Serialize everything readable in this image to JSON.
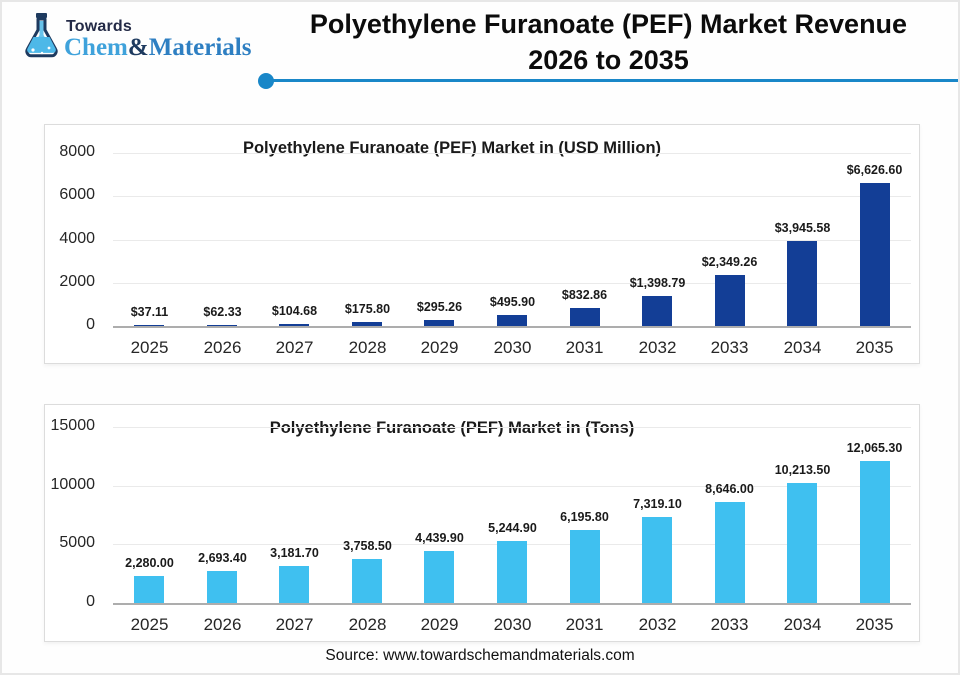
{
  "header": {
    "logo": {
      "top_text": "Towards",
      "brand_chem": "Chem",
      "brand_amp": "&",
      "brand_materials": "Materials"
    },
    "title_line1": "Polyethylene Furanoate (PEF) Market Revenue",
    "title_line2": "2026 to 2035"
  },
  "colors": {
    "accent_divider": "#1987c8",
    "dark_bar": "#133e96",
    "light_bar": "#3fc0f0",
    "gridline": "#eaeaea",
    "axis": "#adadad"
  },
  "chart_data": [
    {
      "type": "bar",
      "title": "Polyethylene Furanoate (PEF) Market in (USD Million)",
      "xlabel": "",
      "ylabel": "",
      "categories": [
        "2025",
        "2026",
        "2027",
        "2028",
        "2029",
        "2030",
        "2031",
        "2032",
        "2033",
        "2034",
        "2035"
      ],
      "values": [
        37.11,
        62.33,
        104.68,
        175.8,
        295.26,
        495.9,
        832.86,
        1398.79,
        2349.26,
        3945.58,
        6626.6
      ],
      "labels": [
        "$37.11",
        "$62.33",
        "$104.68",
        "$175.80",
        "$295.26",
        "$495.90",
        "$832.86",
        "$1,398.79",
        "$2,349.26",
        "$3,945.58",
        "$6,626.60"
      ],
      "yticks": [
        0,
        2000,
        4000,
        6000,
        8000
      ],
      "ylim": [
        0,
        8000
      ],
      "bar_color": "#133e96",
      "grid": true,
      "legend": false
    },
    {
      "type": "bar",
      "title": "Polyethylene Furanoate (PEF) Market in (Tons)",
      "xlabel": "",
      "ylabel": "",
      "categories": [
        "2025",
        "2026",
        "2027",
        "2028",
        "2029",
        "2030",
        "2031",
        "2032",
        "2033",
        "2034",
        "2035"
      ],
      "values": [
        2280.0,
        2693.4,
        3181.7,
        3758.5,
        4439.9,
        5244.9,
        6195.8,
        7319.1,
        8646.0,
        10213.5,
        12065.3
      ],
      "labels": [
        "2,280.00",
        "2,693.40",
        "3,181.70",
        "3,758.50",
        "4,439.90",
        "5,244.90",
        "6,195.80",
        "7,319.10",
        "8,646.00",
        "10,213.50",
        "12,065.30"
      ],
      "yticks": [
        0,
        5000,
        10000,
        15000
      ],
      "ylim": [
        0,
        15000
      ],
      "bar_color": "#3fc0f0",
      "grid": true,
      "legend": false
    }
  ],
  "footer": {
    "source": "Source: www.towardschemandmaterials.com"
  }
}
